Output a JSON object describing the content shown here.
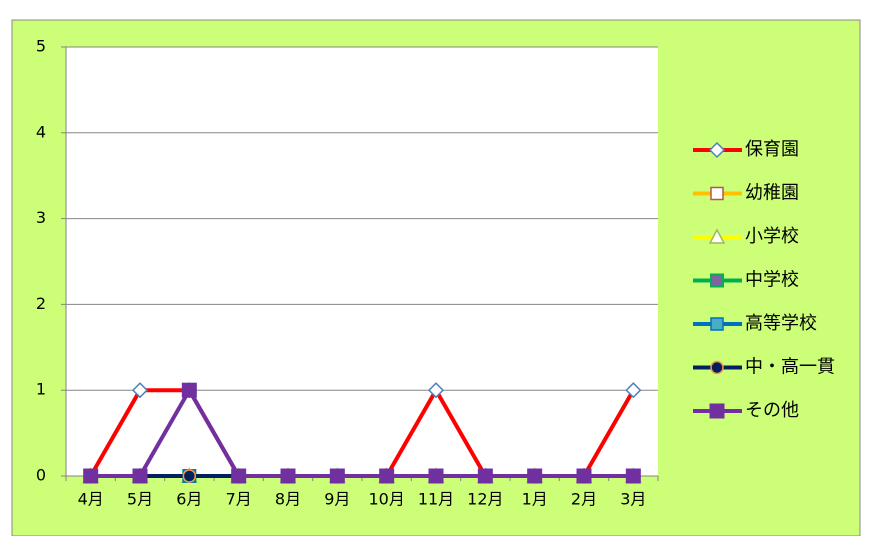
{
  "chart_data": {
    "type": "line",
    "categories": [
      "4月",
      "5月",
      "6月",
      "7月",
      "8月",
      "9月",
      "10月",
      "11月",
      "12月",
      "1月",
      "2月",
      "3月"
    ],
    "ylim": [
      0,
      5
    ],
    "yticks": [
      0,
      1,
      2,
      3,
      4,
      5
    ],
    "grid": true,
    "legend": "right",
    "series": [
      {
        "name": "保育園",
        "color": "#ff0000",
        "marker": "diamond",
        "values": [
          0,
          1,
          1,
          0,
          0,
          0,
          0,
          1,
          0,
          0,
          0,
          1
        ]
      },
      {
        "name": "幼稚園",
        "color": "#ffc000",
        "marker": "square",
        "values": [
          0,
          0,
          0,
          0,
          0,
          0,
          0,
          0,
          0,
          0,
          0,
          0
        ]
      },
      {
        "name": "小学校",
        "color": "#ffff00",
        "marker": "triangle",
        "values": [
          0,
          0,
          0,
          0,
          0,
          0,
          0,
          0,
          0,
          0,
          0,
          0
        ]
      },
      {
        "name": "中学校",
        "color": "#00b050",
        "marker": "xsquare",
        "values": [
          0,
          0,
          0,
          0,
          0,
          0,
          0,
          0,
          0,
          0,
          0,
          0
        ]
      },
      {
        "name": "高等学校",
        "color": "#0070c0",
        "marker": "star",
        "values": [
          0,
          0,
          0,
          0,
          0,
          0,
          0,
          0,
          0,
          0,
          0,
          0
        ]
      },
      {
        "name": "中・高一貫",
        "color": "#002060",
        "marker": "circle",
        "values": [
          0,
          0,
          0,
          0,
          0,
          0,
          0,
          0,
          0,
          0,
          0,
          0
        ]
      },
      {
        "name": "その他",
        "color": "#7030a0",
        "marker": "filledsquare",
        "values": [
          0,
          0,
          1,
          0,
          0,
          0,
          0,
          0,
          0,
          0,
          0,
          0
        ]
      }
    ]
  }
}
